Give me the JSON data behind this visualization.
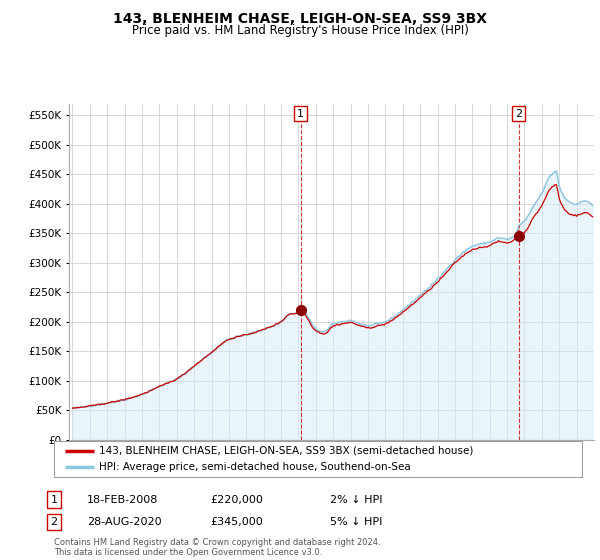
{
  "title": "143, BLENHEIM CHASE, LEIGH-ON-SEA, SS9 3BX",
  "subtitle": "Price paid vs. HM Land Registry's House Price Index (HPI)",
  "ylabel_ticks": [
    "£0",
    "£50K",
    "£100K",
    "£150K",
    "£200K",
    "£250K",
    "£300K",
    "£350K",
    "£400K",
    "£450K",
    "£500K",
    "£550K"
  ],
  "ytick_vals": [
    0,
    50000,
    100000,
    150000,
    200000,
    250000,
    300000,
    350000,
    400000,
    450000,
    500000,
    550000
  ],
  "ylim": [
    0,
    570000
  ],
  "legend_line1": "143, BLENHEIM CHASE, LEIGH-ON-SEA, SS9 3BX (semi-detached house)",
  "legend_line2": "HPI: Average price, semi-detached house, Southend-on-Sea",
  "annotation1_label": "1",
  "annotation1_date": "18-FEB-2008",
  "annotation1_price": "£220,000",
  "annotation1_hpi": "2% ↓ HPI",
  "annotation2_label": "2",
  "annotation2_date": "28-AUG-2020",
  "annotation2_price": "£345,000",
  "annotation2_hpi": "5% ↓ HPI",
  "footnote": "Contains HM Land Registry data © Crown copyright and database right 2024.\nThis data is licensed under the Open Government Licence v3.0.",
  "line_color_red": "#cc0000",
  "line_color_blue": "#89c4e1",
  "fill_color_blue": "#d6ecf8",
  "vline_color": "#cc0000",
  "marker_color_red": "#8b0000",
  "background_color": "#ffffff",
  "grid_color": "#d0d0d0",
  "sale1_x": 2008.13,
  "sale1_y": 220000,
  "sale2_x": 2020.67,
  "sale2_y": 345000,
  "xlim_left": 1994.8,
  "xlim_right": 2025.0
}
